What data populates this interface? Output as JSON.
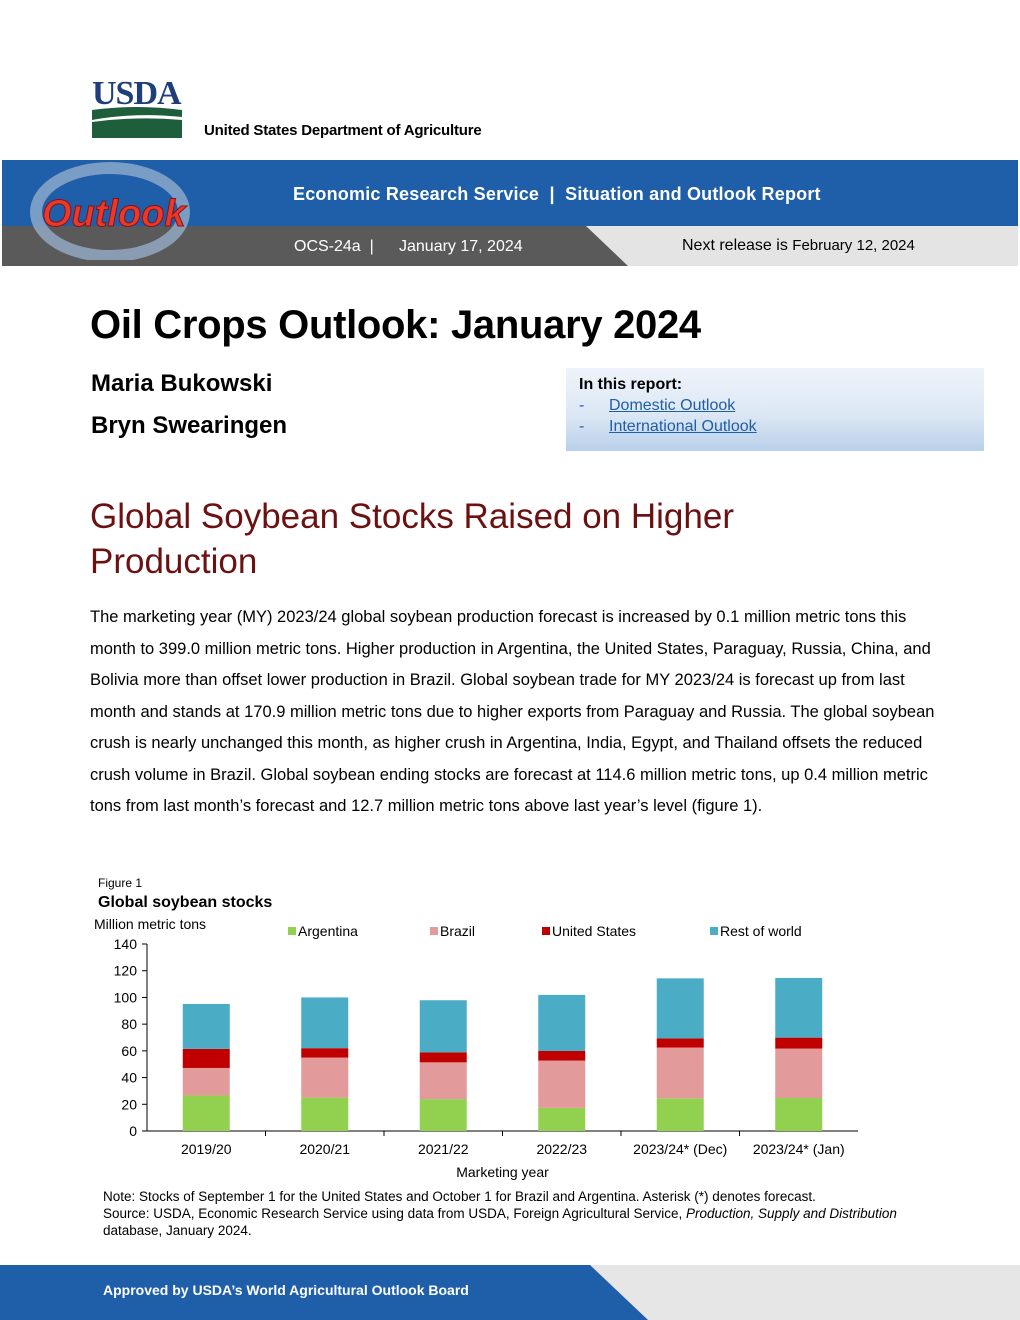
{
  "header": {
    "agency_logo_text": "USDA",
    "agency_name": "United States Department of Agriculture",
    "series_logo_text": "Outlook",
    "ers_line": "Economic Research Service  |  Situation and Outlook Report",
    "report_id": "OCS-24a  |",
    "report_date": "January 17, 2024",
    "next_release_label": "Next release is",
    "next_release_date": "February 12, 2024",
    "colors": {
      "banner_blue": "#1f5ea8",
      "banner_gray": "#5a5a5a",
      "headline_red": "#6b1111"
    }
  },
  "report": {
    "title": "Oil Crops Outlook: January 2024",
    "authors": [
      "Maria Bukowski",
      "Bryn Swearingen"
    ]
  },
  "toc": {
    "title": "In this report:",
    "items": [
      {
        "dash": "-",
        "label": "Domestic Outlook"
      },
      {
        "dash": "-",
        "label": "International Outlook"
      }
    ]
  },
  "headline": "Global Soybean Stocks Raised on Higher Production",
  "body": "The marketing year (MY) 2023/24 global soybean production forecast is increased by 0.1 million metric tons this month to 399.0 million metric tons. Higher production in Argentina, the United States, Paraguay, Russia, China, and Bolivia more than offset lower production in Brazil. Global soybean trade for MY 2023/24 is forecast up from last month and stands at 170.9 million metric tons due to higher exports from Paraguay and Russia. The global soybean crush is nearly unchanged this month, as higher crush in Argentina, India, Egypt, and Thailand offsets the reduced crush volume in Brazil. Global soybean ending stocks are forecast at 114.6 million metric tons, up 0.4 million metric tons from last month’s forecast and 12.7 million metric tons above last year’s level (figure 1).",
  "figure": {
    "label": "Figure 1",
    "note_line1": "Note: Stocks of September 1 for the United States and October 1 for Brazil and Argentina. Asterisk (*) denotes forecast.",
    "note_source_prefix": "Source: USDA, Economic Research Service using data from USDA, Foreign Agricultural Service,",
    "note_source_italic": "Production, Supply and Distribution",
    "note_source_suffix": "database, January 2024."
  },
  "chart_data": {
    "type": "bar",
    "stacked": true,
    "title": "Global soybean stocks",
    "ylabel": "Million metric tons",
    "xlabel": "Marketing year",
    "ylim": [
      0,
      140
    ],
    "yticks": [
      0,
      20,
      40,
      60,
      80,
      100,
      120,
      140
    ],
    "grid": false,
    "legend_position": "top",
    "categories": [
      "2019/20",
      "2020/21",
      "2021/22",
      "2022/23",
      "2023/24* (Dec)",
      "2023/24* (Jan)"
    ],
    "series": [
      {
        "name": "Argentina",
        "color": "#92d050",
        "values": [
          26.6,
          25.0,
          23.9,
          17.3,
          24.5,
          24.7
        ]
      },
      {
        "name": "Brazil",
        "color": "#e39a9a",
        "values": [
          20.6,
          30.0,
          27.5,
          35.4,
          38.0,
          37.0
        ]
      },
      {
        "name": "United States",
        "color": "#c00000",
        "values": [
          14.3,
          7.0,
          7.5,
          7.2,
          6.8,
          8.2
        ]
      },
      {
        "name": "Rest of world",
        "color": "#4bacc6",
        "values": [
          33.6,
          38.0,
          39.0,
          42.0,
          45.0,
          44.7
        ]
      }
    ]
  },
  "footer": {
    "text": "Approved by USDA’s World Agricultural Outlook Board"
  }
}
